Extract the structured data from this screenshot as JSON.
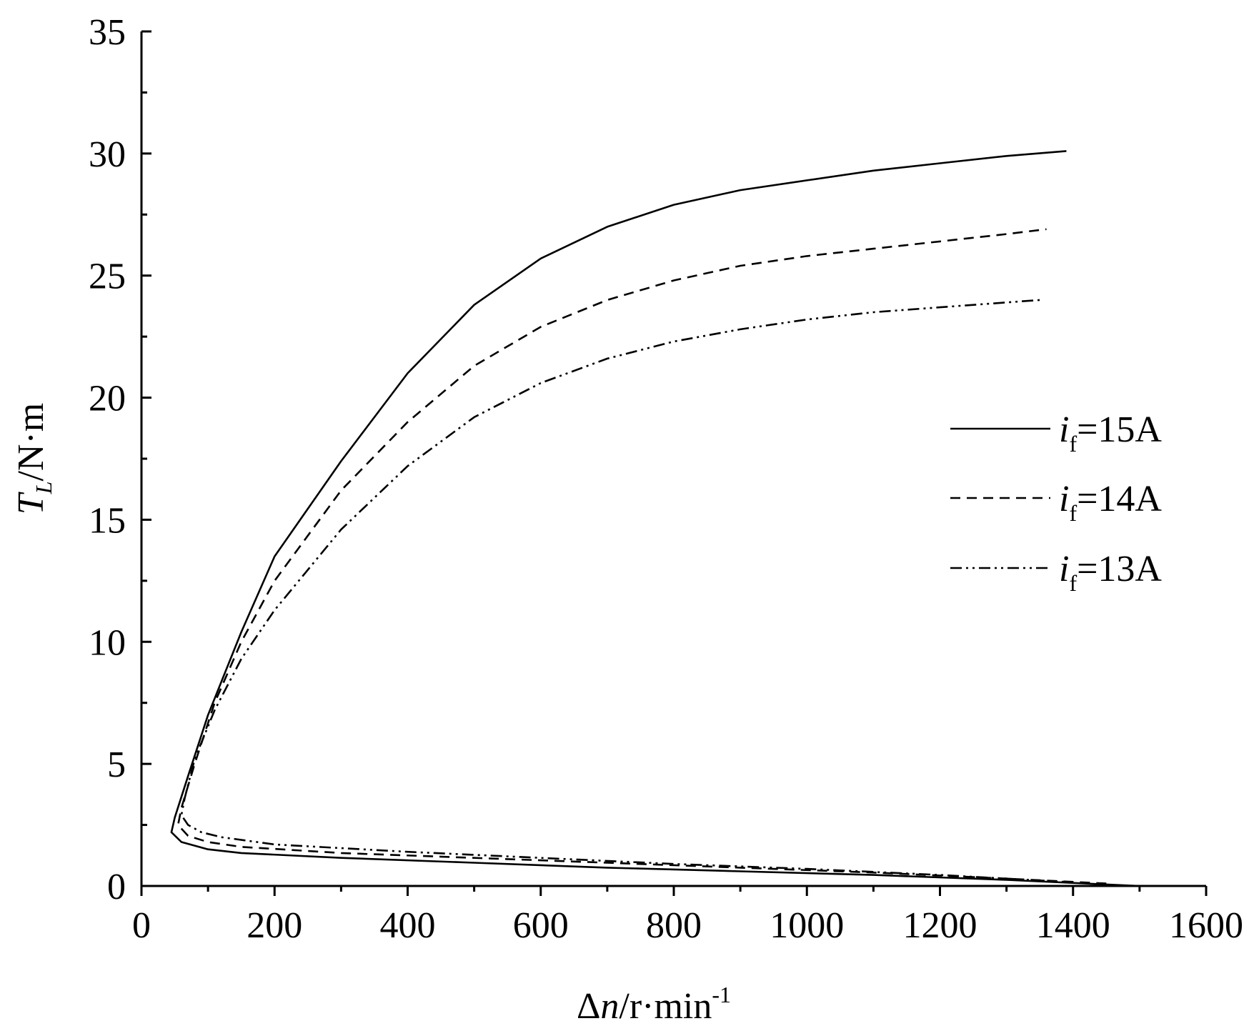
{
  "chart_data": {
    "type": "line",
    "xlabel": "Δn/r·min-1",
    "ylabel": "TL/N·m",
    "xlim": [
      0,
      1600
    ],
    "ylim": [
      0,
      35
    ],
    "x_ticks": [
      0,
      200,
      400,
      600,
      800,
      1000,
      1200,
      1400,
      1600
    ],
    "y_ticks": [
      0,
      5,
      10,
      15,
      20,
      25,
      30,
      35
    ],
    "x_label": {
      "symbol": "Δ",
      "var": "n",
      "unit": "/r·min",
      "exp": "-1"
    },
    "y_label": {
      "var": "T",
      "sub": "L",
      "unit": "/N·m"
    },
    "grid": false,
    "legend_position": "right",
    "series": [
      {
        "name": "if=15A",
        "label_var": "i",
        "label_sub": "f",
        "label_rest": "=15A",
        "dash": "solid",
        "x": [
          1500,
          1300,
          1100,
          900,
          700,
          500,
          300,
          150,
          100,
          60,
          45,
          50,
          70,
          100,
          150,
          200,
          300,
          400,
          500,
          600,
          700,
          800,
          900,
          1000,
          1100,
          1200,
          1300,
          1390
        ],
        "y": [
          0.0,
          0.25,
          0.45,
          0.6,
          0.75,
          0.95,
          1.15,
          1.35,
          1.5,
          1.8,
          2.2,
          2.8,
          4.5,
          7.0,
          10.4,
          13.5,
          17.4,
          21.0,
          23.8,
          25.7,
          27.0,
          27.9,
          28.5,
          28.9,
          29.3,
          29.6,
          29.9,
          30.1
        ]
      },
      {
        "name": "if=14A",
        "label_var": "i",
        "label_sub": "f",
        "label_rest": "=14A",
        "dash": "dashed",
        "x": [
          1450,
          1300,
          1100,
          900,
          700,
          500,
          300,
          150,
          100,
          70,
          55,
          60,
          80,
          110,
          150,
          200,
          300,
          400,
          500,
          600,
          700,
          800,
          900,
          1000,
          1100,
          1200,
          1300,
          1360
        ],
        "y": [
          0.1,
          0.3,
          0.55,
          0.75,
          0.95,
          1.15,
          1.35,
          1.6,
          1.8,
          2.05,
          2.5,
          3.2,
          5.0,
          7.5,
          10.0,
          12.5,
          16.2,
          19.0,
          21.3,
          22.9,
          24.0,
          24.8,
          25.4,
          25.8,
          26.1,
          26.4,
          26.7,
          26.9
        ]
      },
      {
        "name": "if=13A",
        "label_var": "i",
        "label_sub": "f",
        "label_rest": "=13A",
        "dash": "dashdotdot",
        "x": [
          1400,
          1200,
          1000,
          800,
          600,
          400,
          200,
          120,
          90,
          70,
          60,
          65,
          80,
          110,
          150,
          200,
          300,
          400,
          500,
          600,
          700,
          800,
          900,
          1000,
          1100,
          1200,
          1300,
          1350
        ],
        "y": [
          0.15,
          0.45,
          0.7,
          0.9,
          1.15,
          1.4,
          1.7,
          2.0,
          2.2,
          2.5,
          2.9,
          3.6,
          5.2,
          7.2,
          9.3,
          11.3,
          14.6,
          17.2,
          19.2,
          20.6,
          21.6,
          22.3,
          22.8,
          23.2,
          23.5,
          23.7,
          23.9,
          24.0
        ]
      }
    ]
  }
}
